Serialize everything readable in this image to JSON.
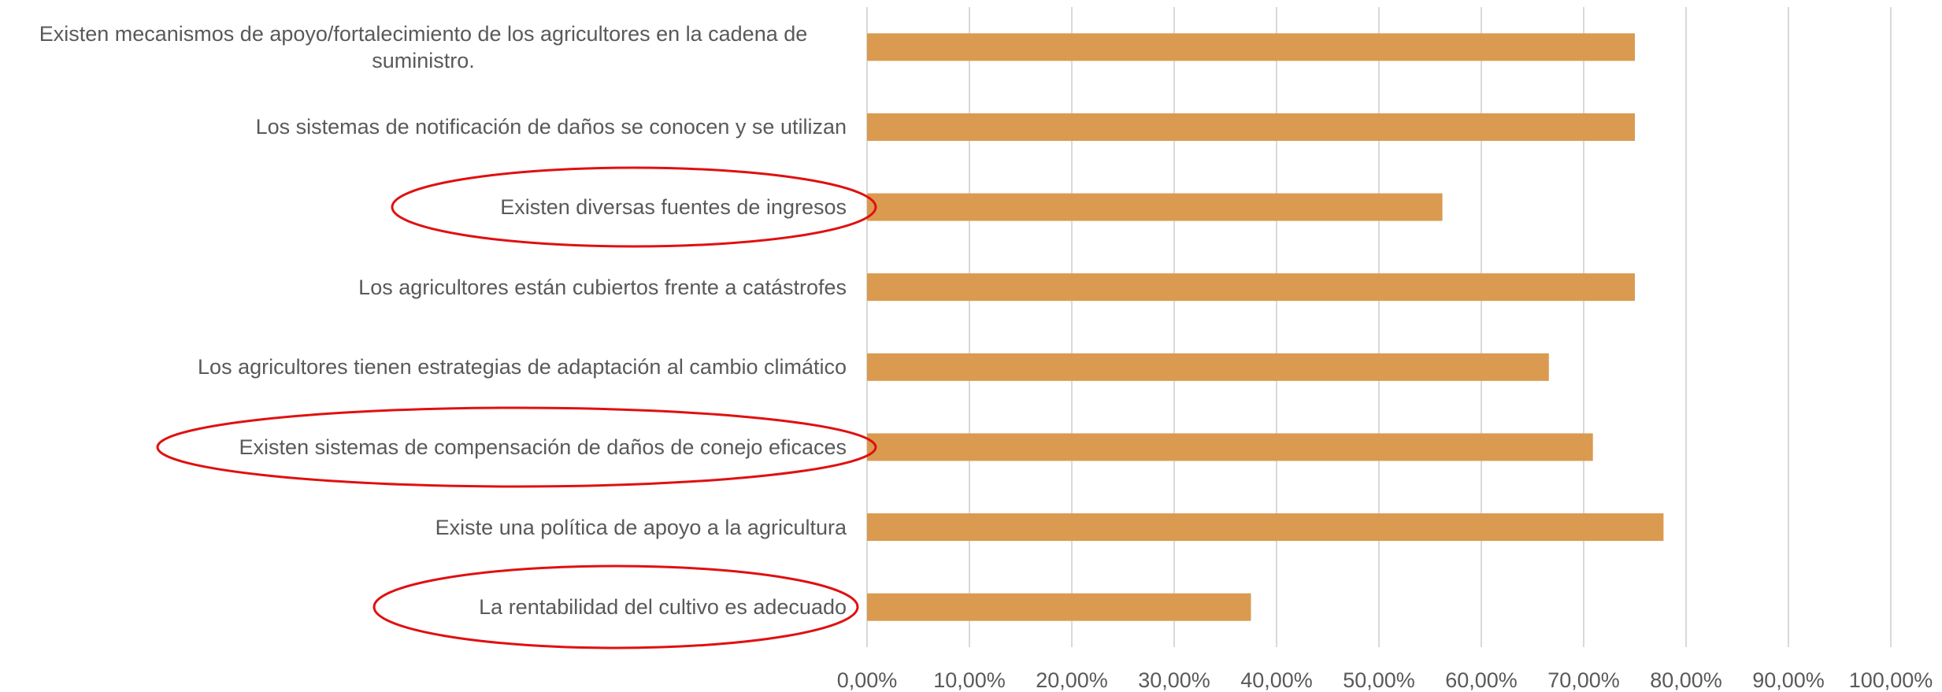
{
  "chart_data": {
    "type": "barh",
    "categories": [
      "Existen mecanismos de apoyo/fortalecimiento de los agricultores en la cadena de suministro.",
      "Los sistemas de notificación de daños se conocen y se utilizan",
      "Existen diversas fuentes de ingresos",
      "Los agricultores están cubiertos frente a catástrofes",
      "Los agricultores tienen estrategias de adaptación al cambio climático",
      "Existen sistemas de compensación de daños de conejo eficaces",
      "Existe una política de apoyo a la agricultura",
      "La rentabilidad del cultivo es adecuado"
    ],
    "values": [
      75.0,
      75.0,
      56.2,
      75.0,
      66.6,
      70.9,
      77.8,
      37.5
    ],
    "color": "#da9a50",
    "xlim": [
      0,
      100
    ],
    "xticks": [
      {
        "value": 0,
        "label": "0,00%"
      },
      {
        "value": 10,
        "label": "10,00%"
      },
      {
        "value": 20,
        "label": "20,00%"
      },
      {
        "value": 30,
        "label": "30,00%"
      },
      {
        "value": 40,
        "label": "40,00%"
      },
      {
        "value": 50,
        "label": "50,00%"
      },
      {
        "value": 60,
        "label": "60,00%"
      },
      {
        "value": 70,
        "label": "70,00%"
      },
      {
        "value": 80,
        "label": "80,00%"
      },
      {
        "value": 90,
        "label": "90,00%"
      },
      {
        "value": 100,
        "label": "100,00%"
      }
    ],
    "grid": true
  }
}
